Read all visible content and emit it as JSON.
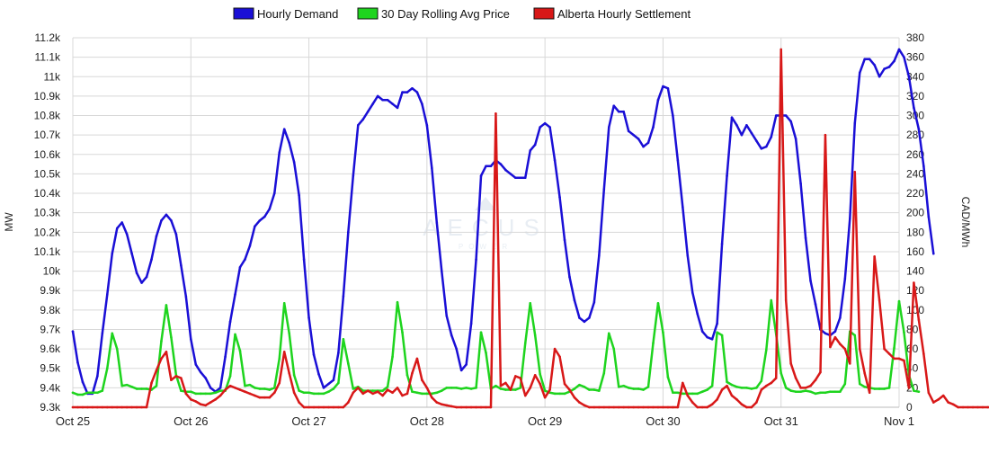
{
  "colors": {
    "demand": "#1a0fd6",
    "avg_price": "#1ed41e",
    "settlement": "#d81818",
    "grid": "#d8d8d8",
    "axis_text": "#222222",
    "watermark": "#d6e0ea"
  },
  "watermark": {
    "title": "AECUS",
    "subtitle": "POWER"
  },
  "chart_data": {
    "type": "line",
    "legend": {
      "position": "top-center"
    },
    "grid": {
      "vertical": true,
      "horizontal": true
    },
    "x": {
      "start": "Oct 25 00:00",
      "end": "Nov 1 00:00",
      "step_hours": 1,
      "tick_labels": [
        "Oct 25",
        "Oct 26",
        "Oct 27",
        "Oct 28",
        "Oct 29",
        "Oct 30",
        "Oct 31",
        "Nov 1"
      ],
      "range_hours": [
        0,
        168
      ]
    },
    "y_left": {
      "label": "MW",
      "min": 9300,
      "max": 11200,
      "step": 100,
      "tick_labels": [
        "9.3k",
        "9.4k",
        "9.5k",
        "9.6k",
        "9.7k",
        "9.8k",
        "9.9k",
        "10k",
        "10.1k",
        "10.2k",
        "10.3k",
        "10.4k",
        "10.5k",
        "10.6k",
        "10.7k",
        "10.8k",
        "10.9k",
        "11k",
        "11.1k",
        "11.2k"
      ]
    },
    "y_right": {
      "label": "CAD/MWh",
      "min": 0,
      "max": 380,
      "step": 20,
      "tick_labels": [
        "0",
        "20",
        "40",
        "60",
        "80",
        "100",
        "120",
        "140",
        "160",
        "180",
        "200",
        "220",
        "240",
        "260",
        "280",
        "300",
        "320",
        "340",
        "360",
        "380"
      ]
    },
    "series": [
      {
        "name": "Hourly Demand",
        "axis": "left",
        "start_hour": 0,
        "values": [
          9690,
          9530,
          9430,
          9370,
          9370,
          9460,
          9680,
          9880,
          10090,
          10220,
          10250,
          10190,
          10090,
          9990,
          9940,
          9970,
          10060,
          10180,
          10260,
          10290,
          10260,
          10190,
          10030,
          9870,
          9650,
          9520,
          9480,
          9450,
          9400,
          9380,
          9400,
          9560,
          9740,
          9880,
          10020,
          10060,
          10130,
          10230,
          10260,
          10280,
          10320,
          10400,
          10610,
          10730,
          10660,
          10560,
          10390,
          10060,
          9760,
          9570,
          9470,
          9400,
          9420,
          9440,
          9580,
          9870,
          10200,
          10490,
          10750,
          10780,
          10820,
          10860,
          10900,
          10880,
          10880,
          10860,
          10840,
          10920,
          10920,
          10940,
          10920,
          10860,
          10750,
          10530,
          10250,
          10000,
          9770,
          9670,
          9600,
          9490,
          9520,
          9730,
          10060,
          10490,
          10540,
          10540,
          10570,
          10550,
          10520,
          10500,
          10480,
          10480,
          10480,
          10620,
          10650,
          10740,
          10760,
          10740,
          10570,
          10380,
          10160,
          9970,
          9850,
          9760,
          9740,
          9760,
          9840,
          10080,
          10420,
          10740,
          10850,
          10820,
          10820,
          10720,
          10700,
          10680,
          10640,
          10660,
          10740,
          10880,
          10950,
          10940,
          10800,
          10570,
          10330,
          10080,
          9890,
          9780,
          9690,
          9660,
          9650,
          9730,
          10140,
          10490,
          10790,
          10750,
          10700,
          10750,
          10710,
          10670,
          10630,
          10640,
          10690,
          10800,
          10800,
          10800,
          10770,
          10680,
          10450,
          10170,
          9950,
          9830,
          9700,
          9680,
          9670,
          9690,
          9760,
          9960,
          10270,
          10760,
          11020,
          11090,
          11090,
          11060,
          11000,
          11040,
          11050,
          11080,
          11140,
          11100,
          11000,
          10840,
          10730,
          10540,
          10280,
          10090
        ]
      },
      {
        "name": "30 Day Rolling Avg Price",
        "axis": "right",
        "start_hour": 0,
        "values": [
          15,
          13,
          13,
          15,
          15,
          15,
          17,
          40,
          76,
          60,
          22,
          23,
          21,
          19,
          19,
          19,
          18,
          22,
          68,
          105,
          72,
          33,
          17,
          16,
          16,
          14,
          14,
          14,
          14,
          15,
          17,
          17,
          32,
          75,
          58,
          22,
          23,
          20,
          19,
          19,
          18,
          20,
          50,
          107,
          76,
          33,
          17,
          15,
          15,
          14,
          14,
          14,
          16,
          19,
          25,
          70,
          45,
          19,
          21,
          17,
          17,
          17,
          17,
          17,
          21,
          52,
          108,
          77,
          33,
          16,
          15,
          14,
          14,
          14,
          15,
          17,
          20,
          20,
          20,
          19,
          20,
          19,
          20,
          77,
          56,
          19,
          22,
          19,
          18,
          18,
          18,
          20,
          66,
          107,
          74,
          34,
          17,
          15,
          14,
          14,
          14,
          16,
          19,
          23,
          21,
          18,
          18,
          17,
          35,
          76,
          60,
          21,
          22,
          20,
          19,
          19,
          18,
          21,
          66,
          107,
          77,
          31,
          15,
          15,
          14,
          14,
          14,
          14,
          16,
          18,
          22,
          77,
          74,
          26,
          23,
          21,
          20,
          20,
          19,
          20,
          27,
          59,
          110,
          75,
          35,
          20,
          17,
          16,
          16,
          17,
          16,
          14,
          15,
          15,
          16,
          16,
          16,
          24,
          78,
          74,
          24,
          21,
          20,
          19,
          19,
          19,
          20,
          61,
          109,
          77,
          33,
          17,
          16
        ]
      },
      {
        "name": "Alberta Hourly Settlement",
        "axis": "right",
        "start_hour": 0,
        "values": [
          0,
          0,
          0,
          0,
          0,
          0,
          0,
          0,
          0,
          0,
          0,
          0,
          0,
          0,
          0,
          0,
          25,
          38,
          50,
          57,
          28,
          32,
          30,
          14,
          8,
          6,
          3,
          2,
          5,
          8,
          12,
          18,
          22,
          20,
          18,
          16,
          14,
          12,
          10,
          10,
          10,
          15,
          25,
          57,
          35,
          15,
          5,
          0,
          0,
          0,
          0,
          0,
          0,
          0,
          0,
          0,
          5,
          15,
          20,
          14,
          17,
          14,
          16,
          12,
          18,
          15,
          20,
          12,
          14,
          35,
          50,
          28,
          20,
          10,
          5,
          3,
          2,
          1,
          0,
          0,
          0,
          0,
          0,
          0,
          0,
          0,
          302,
          22,
          25,
          18,
          32,
          30,
          12,
          20,
          33,
          24,
          10,
          18,
          60,
          52,
          24,
          18,
          10,
          5,
          2,
          0,
          0,
          0,
          0,
          0,
          0,
          0,
          0,
          0,
          0,
          0,
          0,
          0,
          0,
          0,
          0,
          0,
          0,
          0,
          25,
          12,
          5,
          0,
          0,
          0,
          3,
          8,
          18,
          22,
          12,
          8,
          3,
          0,
          0,
          5,
          18,
          22,
          25,
          30,
          368,
          110,
          45,
          30,
          20,
          20,
          22,
          28,
          36,
          280,
          62,
          72,
          65,
          60,
          45,
          242,
          60,
          35,
          15,
          155,
          110,
          60,
          55,
          50,
          50,
          48,
          20,
          128,
          90,
          55,
          15,
          5,
          8,
          12,
          5,
          3,
          0,
          0,
          0,
          0,
          0,
          0,
          0,
          0,
          0,
          0,
          0,
          0,
          0,
          0
        ]
      }
    ]
  }
}
